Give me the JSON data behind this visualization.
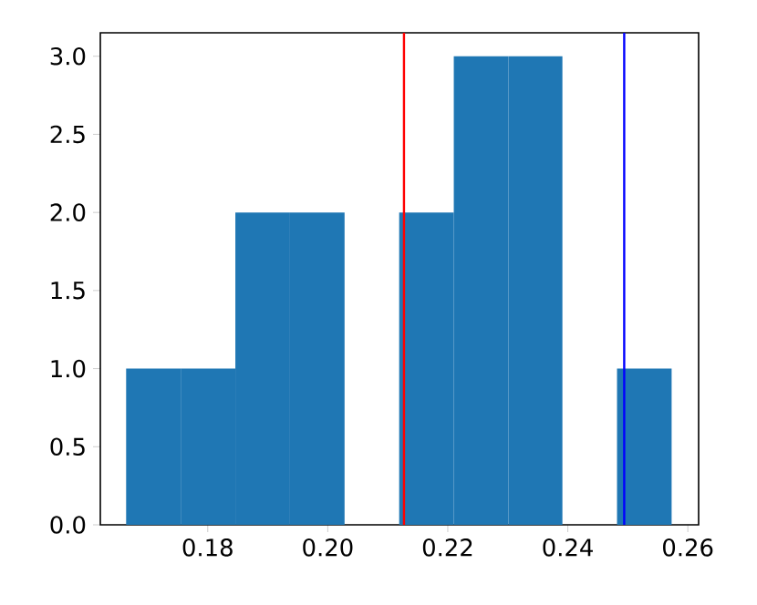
{
  "chart_data": {
    "type": "histogram",
    "bins": [
      0.1664,
      0.1755,
      0.1846,
      0.1937,
      0.2028,
      0.2119,
      0.221,
      0.2301,
      0.2391,
      0.2482,
      0.2573
    ],
    "values": [
      1,
      1,
      2,
      2,
      0,
      2,
      3,
      3,
      0,
      1
    ],
    "color": "#1f77b4",
    "xlim": [
      0.1621,
      0.2618
    ],
    "xticks": [
      {
        "value": 0.18,
        "label": "0.18"
      },
      {
        "value": 0.2,
        "label": "0.20"
      },
      {
        "value": 0.22,
        "label": "0.22"
      },
      {
        "value": 0.24,
        "label": "0.24"
      },
      {
        "value": 0.26,
        "label": "0.26"
      }
    ],
    "ylim": [
      0,
      3.15
    ],
    "yticks": [
      {
        "value": 0,
        "label": "0.0"
      },
      {
        "value": 0.5,
        "label": "0.5"
      },
      {
        "value": 1,
        "label": "1.0"
      },
      {
        "value": 1.5,
        "label": "1.5"
      },
      {
        "value": 2,
        "label": "2.0"
      },
      {
        "value": 2.5,
        "label": "2.5"
      },
      {
        "value": 3,
        "label": "3.0"
      }
    ],
    "ref_lines": [
      {
        "axis": "x",
        "value": 0.2127,
        "color": "#ff0000"
      },
      {
        "axis": "x",
        "value": 0.2494,
        "color": "#0000ff"
      }
    ],
    "grid": false
  }
}
